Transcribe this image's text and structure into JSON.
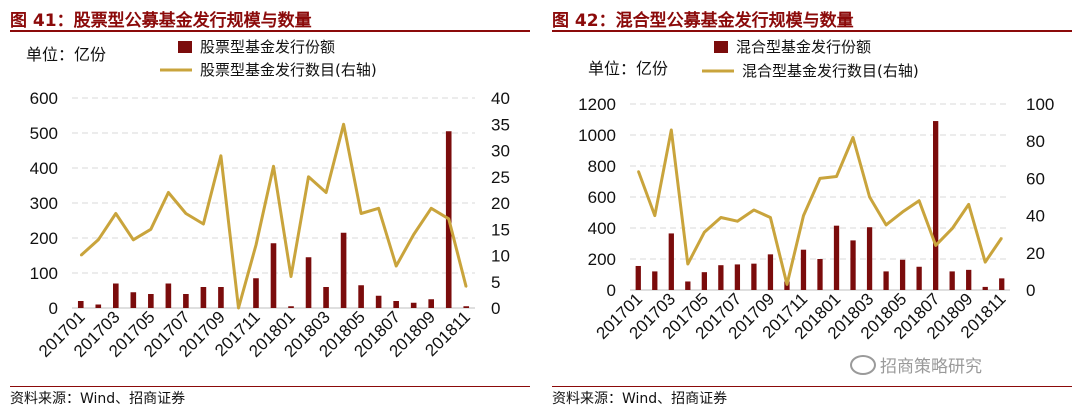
{
  "left": {
    "figure_title": "图 41：股票型公募基金发行规模与数量",
    "source": "资料来源：Wind、招商证券"
  },
  "right": {
    "figure_title": "图 42：混合型公募基金发行规模与数量",
    "source": "资料来源：Wind、招商证券"
  },
  "watermark": "招商策略研究",
  "colors": {
    "bar": "#7b0c0c",
    "line": "#c9a43c",
    "grid": "#d9d9d9",
    "title": "#8b0a0a"
  },
  "chart_data": [
    {
      "type": "bar+line",
      "title": "股票型公募基金发行规模与数量",
      "unit_label": "单位：亿份",
      "categories": [
        "201701",
        "201702",
        "201703",
        "201704",
        "201705",
        "201706",
        "201707",
        "201708",
        "201709",
        "201710",
        "201711",
        "201712",
        "201801",
        "201802",
        "201803",
        "201804",
        "201805",
        "201806",
        "201807",
        "201808",
        "201809",
        "201810",
        "201811"
      ],
      "x_tick_labels": [
        "201701",
        "201703",
        "201705",
        "201707",
        "201709",
        "201711",
        "201801",
        "201803",
        "201805",
        "201807",
        "201809",
        "201811"
      ],
      "series": [
        {
          "name": "股票型基金发行份额",
          "type": "bar",
          "axis": "left",
          "values": [
            20,
            10,
            70,
            45,
            40,
            70,
            40,
            60,
            60,
            0,
            85,
            185,
            5,
            145,
            60,
            215,
            65,
            35,
            20,
            15,
            25,
            505,
            5
          ]
        },
        {
          "name": "股票型基金发行数目(右轴)",
          "type": "line",
          "axis": "right",
          "values": [
            10,
            13,
            18,
            13,
            15,
            22,
            18,
            16,
            29,
            0,
            12,
            27,
            6,
            25,
            22,
            35,
            18,
            19,
            8,
            14,
            19,
            17,
            4
          ]
        }
      ],
      "ylim_left": [
        0,
        600
      ],
      "yticks_left": [
        0,
        100,
        200,
        300,
        400,
        500,
        600
      ],
      "ylim_right": [
        0,
        40
      ],
      "yticks_right": [
        0,
        5,
        10,
        15,
        20,
        25,
        30,
        35,
        40
      ],
      "legend_position": "top",
      "grid": true
    },
    {
      "type": "bar+line",
      "title": "混合型公募基金发行规模与数量",
      "unit_label": "单位：亿份",
      "categories": [
        "201701",
        "201702",
        "201703",
        "201704",
        "201705",
        "201706",
        "201707",
        "201708",
        "201709",
        "201710",
        "201711",
        "201712",
        "201801",
        "201802",
        "201803",
        "201804",
        "201805",
        "201806",
        "201807",
        "201808",
        "201809",
        "201810",
        "201811"
      ],
      "x_tick_labels": [
        "201701",
        "201703",
        "201705",
        "201707",
        "201709",
        "201711",
        "201801",
        "201803",
        "201805",
        "201807",
        "201809",
        "201811"
      ],
      "series": [
        {
          "name": "混合型基金发行份额",
          "type": "bar",
          "axis": "left",
          "values": [
            155,
            120,
            365,
            55,
            115,
            160,
            165,
            170,
            230,
            55,
            260,
            200,
            415,
            320,
            405,
            120,
            195,
            150,
            1090,
            120,
            130,
            20,
            75
          ]
        },
        {
          "name": "混合型基金发行数目(右轴)",
          "type": "line",
          "axis": "right",
          "values": [
            64,
            40,
            86,
            14,
            31,
            39,
            37,
            43,
            39,
            3,
            40,
            60,
            61,
            82,
            50,
            35,
            42,
            48,
            24,
            33,
            46,
            15,
            28
          ]
        }
      ],
      "ylim_left": [
        0,
        1200
      ],
      "yticks_left": [
        0,
        200,
        400,
        600,
        800,
        1000,
        1200
      ],
      "ylim_right": [
        0,
        100
      ],
      "yticks_right": [
        0,
        20,
        40,
        60,
        80,
        100
      ],
      "legend_position": "top",
      "grid": true
    }
  ]
}
